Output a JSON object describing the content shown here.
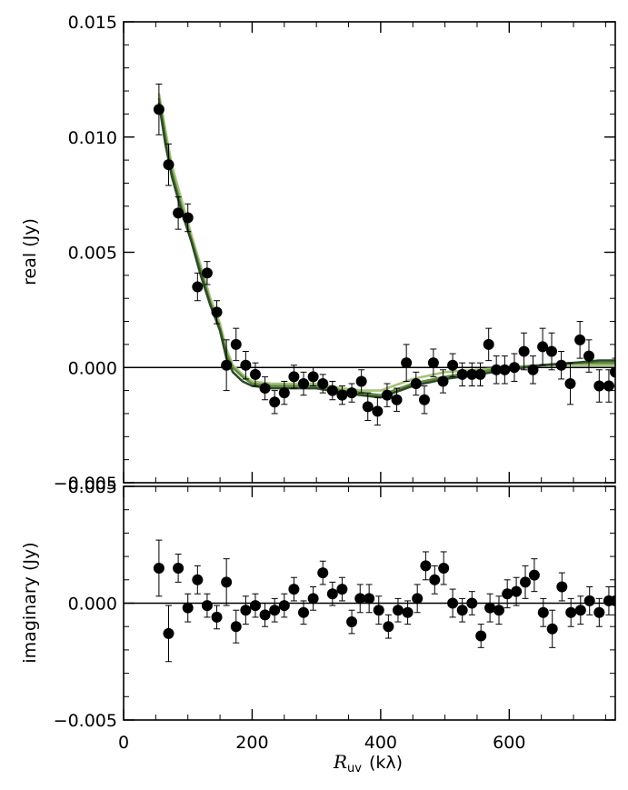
{
  "chart_data": [
    {
      "type": "scatter",
      "panel": "real",
      "ylabel": "real (Jy)",
      "xlim": [
        0,
        765
      ],
      "ylim": [
        -0.005,
        0.015
      ],
      "x_ticks": [
        0,
        200,
        400,
        600
      ],
      "y_ticks": [
        -0.005,
        0.0,
        0.005,
        0.01,
        0.015
      ],
      "y_tick_labels": [
        "−0.005",
        "0.000",
        "0.005",
        "0.010",
        "0.015"
      ],
      "zero_line": true,
      "points": [
        {
          "x": 55,
          "y": 0.0112,
          "err": 0.0011
        },
        {
          "x": 70,
          "y": 0.0088,
          "err": 0.0009
        },
        {
          "x": 85,
          "y": 0.0067,
          "err": 0.0007
        },
        {
          "x": 100,
          "y": 0.0065,
          "err": 0.0006
        },
        {
          "x": 115,
          "y": 0.0035,
          "err": 0.0006
        },
        {
          "x": 130,
          "y": 0.0041,
          "err": 0.0005
        },
        {
          "x": 145,
          "y": 0.0024,
          "err": 0.0005
        },
        {
          "x": 160,
          "y": 0.0001,
          "err": 0.0011
        },
        {
          "x": 175,
          "y": 0.001,
          "err": 0.0007
        },
        {
          "x": 190,
          "y": 0.0001,
          "err": 0.0006
        },
        {
          "x": 205,
          "y": -0.0003,
          "err": 0.0005
        },
        {
          "x": 220,
          "y": -0.0009,
          "err": 0.0005
        },
        {
          "x": 235,
          "y": -0.0015,
          "err": 0.0005
        },
        {
          "x": 250,
          "y": -0.0011,
          "err": 0.0005
        },
        {
          "x": 265,
          "y": -0.0004,
          "err": 0.0005
        },
        {
          "x": 280,
          "y": -0.0007,
          "err": 0.0005
        },
        {
          "x": 295,
          "y": -0.0004,
          "err": 0.0004
        },
        {
          "x": 310,
          "y": -0.0007,
          "err": 0.0004
        },
        {
          "x": 325,
          "y": -0.001,
          "err": 0.0004
        },
        {
          "x": 340,
          "y": -0.0012,
          "err": 0.0004
        },
        {
          "x": 355,
          "y": -0.0011,
          "err": 0.0004
        },
        {
          "x": 370,
          "y": -0.0006,
          "err": 0.0005
        },
        {
          "x": 380,
          "y": -0.0017,
          "err": 0.0006
        },
        {
          "x": 395,
          "y": -0.0019,
          "err": 0.0006
        },
        {
          "x": 410,
          "y": -0.0012,
          "err": 0.0005
        },
        {
          "x": 425,
          "y": -0.0014,
          "err": 0.0005
        },
        {
          "x": 440,
          "y": 0.0002,
          "err": 0.0008
        },
        {
          "x": 455,
          "y": -0.0007,
          "err": 0.0005
        },
        {
          "x": 468,
          "y": -0.0014,
          "err": 0.0006
        },
        {
          "x": 482,
          "y": 0.0002,
          "err": 0.0006
        },
        {
          "x": 497,
          "y": -0.0006,
          "err": 0.0005
        },
        {
          "x": 512,
          "y": 0.0001,
          "err": 0.0005
        },
        {
          "x": 527,
          "y": -0.0003,
          "err": 0.0005
        },
        {
          "x": 542,
          "y": -0.0003,
          "err": 0.0005
        },
        {
          "x": 555,
          "y": -0.0003,
          "err": 0.0005
        },
        {
          "x": 568,
          "y": 0.001,
          "err": 0.0007
        },
        {
          "x": 580,
          "y": -0.0001,
          "err": 0.0006
        },
        {
          "x": 593,
          "y": -0.0001,
          "err": 0.0006
        },
        {
          "x": 608,
          "y": 0.0,
          "err": 0.0006
        },
        {
          "x": 623,
          "y": 0.0007,
          "err": 0.0008
        },
        {
          "x": 637,
          "y": -0.0001,
          "err": 0.0006
        },
        {
          "x": 652,
          "y": 0.0009,
          "err": 0.0008
        },
        {
          "x": 666,
          "y": 0.0007,
          "err": 0.0008
        },
        {
          "x": 681,
          "y": 0.0001,
          "err": 0.0006
        },
        {
          "x": 695,
          "y": -0.0007,
          "err": 0.0009
        },
        {
          "x": 710,
          "y": 0.0012,
          "err": 0.0008
        },
        {
          "x": 724,
          "y": 0.0005,
          "err": 0.0007
        },
        {
          "x": 740,
          "y": -0.0008,
          "err": 0.0007
        },
        {
          "x": 755,
          "y": -0.0008,
          "err": 0.0007
        },
        {
          "x": 765,
          "y": -0.0002,
          "err": 0.0006
        }
      ],
      "model_curves": [
        {
          "color": "#2e4a2a",
          "x": [
            55,
            65,
            75,
            90,
            105,
            120,
            135,
            150,
            160,
            170,
            185,
            200,
            230,
            300,
            340,
            370,
            400,
            420,
            450,
            500,
            550,
            600,
            650,
            700,
            740,
            765
          ],
          "y": [
            0.0115,
            0.0097,
            0.0083,
            0.0068,
            0.0055,
            0.004,
            0.0027,
            0.0016,
            0.0004,
            -0.0002,
            -0.0006,
            -0.0008,
            -0.0009,
            -0.0009,
            -0.0011,
            -0.0012,
            -0.0013,
            -0.0011,
            -0.0008,
            -0.0005,
            -0.0003,
            -0.0001,
            0.0001,
            0.0002,
            0.0003,
            0.0003
          ]
        },
        {
          "color": "#5f8a3c",
          "x": [
            55,
            65,
            75,
            90,
            105,
            120,
            135,
            150,
            160,
            170,
            185,
            200,
            230,
            300,
            340,
            370,
            400,
            420,
            450,
            500,
            550,
            600,
            650,
            700,
            740,
            765
          ],
          "y": [
            0.0117,
            0.01,
            0.0085,
            0.007,
            0.0056,
            0.0042,
            0.0028,
            0.0017,
            0.0006,
            0.0,
            -0.0004,
            -0.0007,
            -0.0008,
            -0.0008,
            -0.001,
            -0.0011,
            -0.0012,
            -0.001,
            -0.0007,
            -0.0004,
            -0.0002,
            0.0,
            0.0001,
            0.0002,
            0.0002,
            0.0002
          ]
        },
        {
          "color": "#a6c27c",
          "x": [
            55,
            65,
            75,
            90,
            105,
            120,
            135,
            150,
            160,
            170,
            185,
            200,
            230,
            300,
            340,
            370,
            400,
            420,
            450,
            500,
            550,
            600,
            650,
            700,
            740,
            765
          ],
          "y": [
            0.0119,
            0.0103,
            0.0088,
            0.0073,
            0.0058,
            0.0044,
            0.003,
            0.0019,
            0.0008,
            0.0001,
            -0.0003,
            -0.0006,
            -0.0007,
            -0.0007,
            -0.0009,
            -0.001,
            -0.001,
            -0.0008,
            -0.0005,
            -0.0002,
            -0.0001,
            0.0,
            0.0001,
            0.0001,
            0.0001,
            0.0001
          ]
        }
      ]
    },
    {
      "type": "scatter",
      "panel": "imaginary",
      "ylabel": "imaginary (Jy)",
      "xlabel_symbol": "R",
      "xlabel_sub": "uv",
      "xlabel_unit": "(kλ)",
      "xlim": [
        0,
        765
      ],
      "ylim": [
        -0.005,
        0.005
      ],
      "x_ticks": [
        0,
        200,
        400,
        600
      ],
      "x_tick_labels": [
        "0",
        "200",
        "400",
        "600"
      ],
      "y_ticks": [
        -0.005,
        0.0,
        0.005
      ],
      "y_tick_labels": [
        "−0.005",
        "0.000",
        "0.005"
      ],
      "zero_line": true,
      "points": [
        {
          "x": 55,
          "y": 0.0015,
          "err": 0.0012
        },
        {
          "x": 70,
          "y": -0.0013,
          "err": 0.0012
        },
        {
          "x": 85,
          "y": 0.0015,
          "err": 0.0006
        },
        {
          "x": 100,
          "y": -0.0002,
          "err": 0.0006
        },
        {
          "x": 115,
          "y": 0.001,
          "err": 0.0006
        },
        {
          "x": 130,
          "y": -0.0001,
          "err": 0.0005
        },
        {
          "x": 145,
          "y": -0.0006,
          "err": 0.0005
        },
        {
          "x": 160,
          "y": 0.0009,
          "err": 0.001
        },
        {
          "x": 175,
          "y": -0.001,
          "err": 0.0007
        },
        {
          "x": 190,
          "y": -0.0003,
          "err": 0.0006
        },
        {
          "x": 205,
          "y": -0.0001,
          "err": 0.0005
        },
        {
          "x": 220,
          "y": -0.0005,
          "err": 0.0005
        },
        {
          "x": 235,
          "y": -0.0003,
          "err": 0.0005
        },
        {
          "x": 250,
          "y": -0.0001,
          "err": 0.0005
        },
        {
          "x": 265,
          "y": 0.0006,
          "err": 0.0005
        },
        {
          "x": 280,
          "y": -0.0004,
          "err": 0.0005
        },
        {
          "x": 295,
          "y": 0.0002,
          "err": 0.0005
        },
        {
          "x": 310,
          "y": 0.0013,
          "err": 0.0005
        },
        {
          "x": 325,
          "y": 0.0004,
          "err": 0.0005
        },
        {
          "x": 340,
          "y": 0.0006,
          "err": 0.0005
        },
        {
          "x": 355,
          "y": -0.0008,
          "err": 0.0005
        },
        {
          "x": 368,
          "y": 0.0002,
          "err": 0.0006
        },
        {
          "x": 382,
          "y": 0.0002,
          "err": 0.0006
        },
        {
          "x": 397,
          "y": -0.0003,
          "err": 0.0006
        },
        {
          "x": 412,
          "y": -0.001,
          "err": 0.0005
        },
        {
          "x": 427,
          "y": -0.0003,
          "err": 0.0005
        },
        {
          "x": 442,
          "y": -0.0004,
          "err": 0.0005
        },
        {
          "x": 457,
          "y": 0.0002,
          "err": 0.0006
        },
        {
          "x": 470,
          "y": 0.0016,
          "err": 0.0006
        },
        {
          "x": 484,
          "y": 0.001,
          "err": 0.0006
        },
        {
          "x": 498,
          "y": 0.0015,
          "err": 0.0007
        },
        {
          "x": 512,
          "y": 0.0,
          "err": 0.0006
        },
        {
          "x": 527,
          "y": -0.0003,
          "err": 0.0005
        },
        {
          "x": 542,
          "y": -0.0,
          "err": 0.0005
        },
        {
          "x": 556,
          "y": -0.0014,
          "err": 0.0005
        },
        {
          "x": 570,
          "y": -0.0002,
          "err": 0.0006
        },
        {
          "x": 584,
          "y": -0.0003,
          "err": 0.0006
        },
        {
          "x": 597,
          "y": 0.0004,
          "err": 0.0006
        },
        {
          "x": 611,
          "y": 0.0005,
          "err": 0.0006
        },
        {
          "x": 625,
          "y": 0.0009,
          "err": 0.0007
        },
        {
          "x": 639,
          "y": 0.0012,
          "err": 0.0007
        },
        {
          "x": 653,
          "y": -0.0004,
          "err": 0.0006
        },
        {
          "x": 667,
          "y": -0.0011,
          "err": 0.0008
        },
        {
          "x": 682,
          "y": 0.0007,
          "err": 0.0006
        },
        {
          "x": 696,
          "y": -0.0004,
          "err": 0.0006
        },
        {
          "x": 711,
          "y": -0.0003,
          "err": 0.0006
        },
        {
          "x": 725,
          "y": 0.0001,
          "err": 0.0006
        },
        {
          "x": 740,
          "y": -0.0004,
          "err": 0.0006
        },
        {
          "x": 755,
          "y": 0.0001,
          "err": 0.0006
        },
        {
          "x": 765,
          "y": 0.0001,
          "err": 0.0006
        }
      ]
    }
  ]
}
